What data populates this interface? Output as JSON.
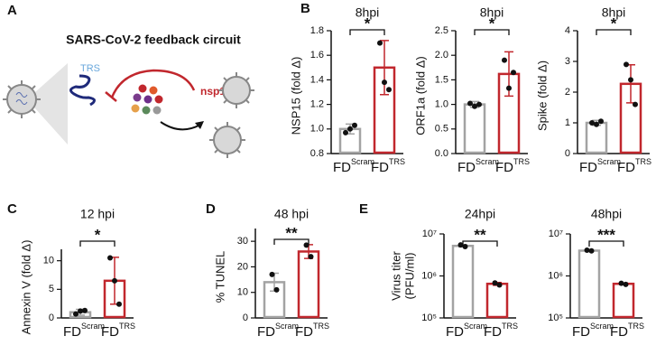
{
  "panel_a": {
    "letter": "A",
    "title": "SARS-CoV-2 feedback circuit",
    "trs_label": "TRS",
    "nsp15_label": "nsp15"
  },
  "chart_data": [
    {
      "type": "bar",
      "panel": "B",
      "title": "8hpi",
      "ylabel": "NSP15 (fold Δ)",
      "categories": [
        {
          "text": "FD",
          "superscript": "Scram"
        },
        {
          "text": "FD",
          "superscript": "TRS"
        }
      ],
      "values": [
        1.0,
        1.5
      ],
      "errors": [
        0.04,
        0.22
      ],
      "points": [
        [
          0.97,
          1.0,
          1.03
        ],
        [
          1.7,
          1.38,
          1.32
        ]
      ],
      "colors": [
        "#a3a3a3",
        "#c1272d"
      ],
      "significance": "*",
      "ylim": [
        0.8,
        1.8
      ],
      "yticks": [
        0.8,
        {
          "value": 1,
          "label": "1.0"
        },
        1.2,
        1.4,
        1.6,
        1.8
      ]
    },
    {
      "type": "bar",
      "title": "8hpi",
      "ylabel": "ORF1a (fold Δ)",
      "categories": [
        {
          "text": "FD",
          "superscript": "Scram"
        },
        {
          "text": "FD",
          "superscript": "TRS"
        }
      ],
      "values": [
        1.0,
        1.62
      ],
      "errors": [
        0.06,
        0.45
      ],
      "points": [
        [
          1.02,
          0.96,
          1.0
        ],
        [
          1.9,
          1.33,
          1.65
        ]
      ],
      "colors": [
        "#a3a3a3",
        "#c1272d"
      ],
      "significance": "*",
      "ylim": [
        0,
        2.5
      ],
      "yticks": [
        {
          "value": 0,
          "label": "0.0"
        },
        0.5,
        {
          "value": 1,
          "label": "1.0"
        },
        1.5,
        {
          "value": 2,
          "label": "2.0"
        },
        2.5
      ]
    },
    {
      "type": "bar",
      "title": "8hpi",
      "ylabel": "Spike (fold Δ)",
      "categories": [
        {
          "text": "FD",
          "superscript": "Scram"
        },
        {
          "text": "FD",
          "superscript": "TRS"
        }
      ],
      "values": [
        1.0,
        2.27
      ],
      "errors": [
        0.08,
        0.62
      ],
      "points": [
        [
          1.0,
          0.95,
          1.05
        ],
        [
          2.9,
          2.4,
          1.6
        ]
      ],
      "colors": [
        "#a3a3a3",
        "#c1272d"
      ],
      "significance": "*",
      "ylim": [
        0,
        4
      ],
      "yticks": [
        0,
        1,
        2,
        3,
        4
      ]
    },
    {
      "type": "bar",
      "panel": "C",
      "title": "12 hpi",
      "ylabel": "Annexin V (fold Δ)",
      "categories": [
        {
          "text": "FD",
          "superscript": "Scram"
        },
        {
          "text": "FD",
          "superscript": "TRS"
        }
      ],
      "values": [
        1.0,
        6.5
      ],
      "errors": [
        0.5,
        4.1
      ],
      "points": [
        [
          0.7,
          1.2,
          1.3
        ],
        [
          10.5,
          6.5,
          2.4
        ]
      ],
      "colors": [
        "#a3a3a3",
        "#c1272d"
      ],
      "significance": "*",
      "ylim": [
        0,
        12
      ],
      "yticks": [
        0,
        5,
        10
      ]
    },
    {
      "type": "bar",
      "panel": "D",
      "title": "48 hpi",
      "ylabel": "% TUNEL",
      "categories": [
        {
          "text": "FD",
          "superscript": "Scram"
        },
        {
          "text": "FD",
          "superscript": "TRS"
        }
      ],
      "values": [
        14,
        26
      ],
      "errors": [
        3.5,
        2.7
      ],
      "points": [
        [
          17,
          11
        ],
        [
          28.5,
          24
        ]
      ],
      "colors": [
        "#a3a3a3",
        "#c1272d"
      ],
      "significance": "**",
      "ylim": [
        0,
        35
      ],
      "yticks": [
        0,
        10,
        20,
        30
      ]
    },
    {
      "type": "bar",
      "panel": "E",
      "title": "24hpi",
      "ylabel": [
        "Virus titer",
        "(PFU/ml)"
      ],
      "yscale": "log",
      "categories": [
        {
          "text": "FD",
          "superscript": "Scram"
        },
        {
          "text": "FD",
          "superscript": "TRS"
        }
      ],
      "values": [
        5200000,
        650000
      ],
      "errors": [
        300000,
        50000
      ],
      "points": [
        [
          5500000,
          5000000
        ],
        [
          680000,
          610000
        ]
      ],
      "colors": [
        "#a3a3a3",
        "#c1272d"
      ],
      "significance": "**",
      "ylim": [
        100000,
        10000000
      ],
      "yticks": [
        {
          "value": 100000,
          "label": "10⁵"
        },
        {
          "value": 1000000,
          "label": "10⁶"
        },
        {
          "value": 10000000,
          "label": "10⁷"
        }
      ]
    },
    {
      "type": "bar",
      "title": "48hpi",
      "yscale": "log",
      "categories": [
        {
          "text": "FD",
          "superscript": "Scram"
        },
        {
          "text": "FD",
          "superscript": "TRS"
        }
      ],
      "values": [
        4000000,
        650000
      ],
      "errors": [
        100000,
        30000
      ],
      "points": [
        [
          4100000,
          3950000
        ],
        [
          670000,
          630000
        ]
      ],
      "colors": [
        "#a3a3a3",
        "#c1272d"
      ],
      "significance": "***",
      "ylim": [
        100000,
        10000000
      ],
      "yticks": [
        {
          "value": 100000,
          "label": "10⁵"
        },
        {
          "value": 1000000,
          "label": "10⁶"
        },
        {
          "value": 10000000,
          "label": "10⁷"
        }
      ]
    }
  ]
}
